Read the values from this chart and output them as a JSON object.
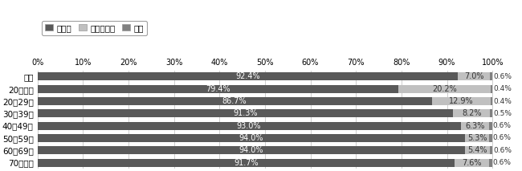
{
  "categories": [
    "全体",
    "20歳未満",
    "20～29歳",
    "30～39歳",
    "40～49歳",
    "50～59歳",
    "60～69歳",
    "70歳以上"
  ],
  "shitai": [
    92.4,
    79.4,
    86.7,
    91.3,
    93.0,
    94.0,
    94.0,
    91.7
  ],
  "shitakunai": [
    7.0,
    20.2,
    12.9,
    8.2,
    6.3,
    5.3,
    5.4,
    7.6
  ],
  "fusho": [
    0.6,
    0.4,
    0.4,
    0.5,
    0.6,
    0.6,
    0.6,
    0.6
  ],
  "color_shitai": "#595959",
  "color_shitakunai": "#c0c0c0",
  "color_fusho": "#808080",
  "legend_labels": [
    "したい",
    "したくない",
    "不詳"
  ],
  "xlabel_ticks": [
    0,
    10,
    20,
    30,
    40,
    50,
    60,
    70,
    80,
    90,
    100
  ],
  "bar_height": 0.65,
  "figsize": [
    6.5,
    2.13
  ],
  "dpi": 100,
  "label_fontsize": 7.0,
  "tick_fontsize": 7.0,
  "legend_fontsize": 7.5,
  "ytick_fontsize": 7.5
}
